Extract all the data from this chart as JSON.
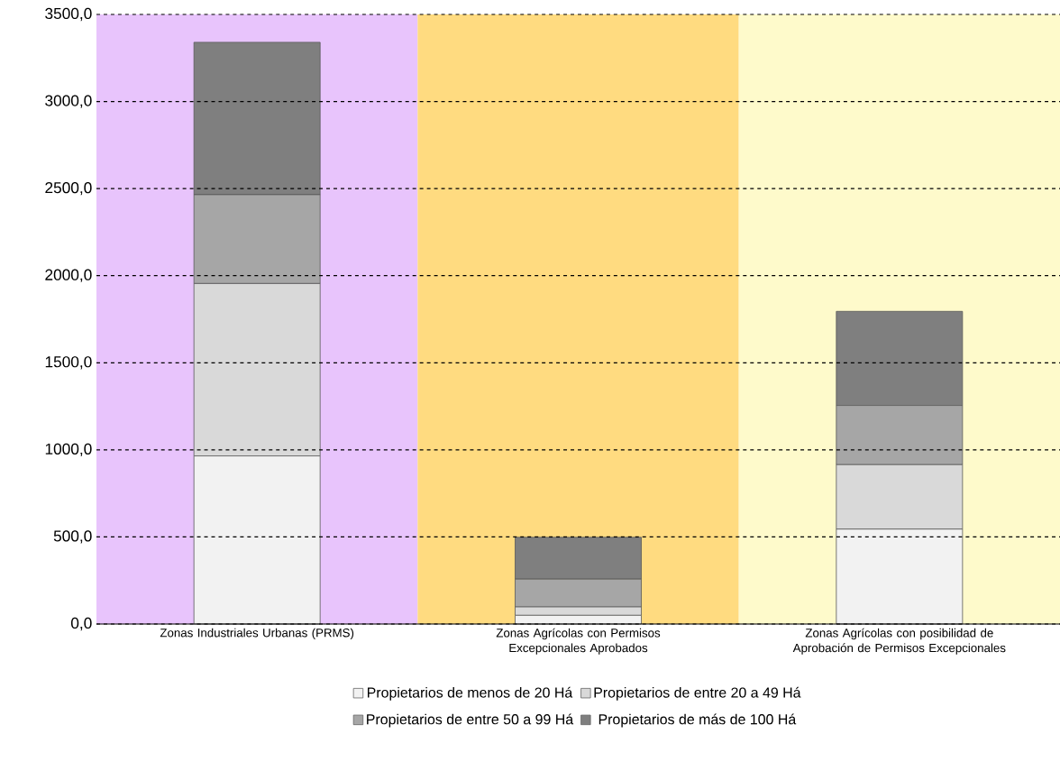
{
  "chart_data": {
    "type": "bar",
    "stacked": true,
    "categories": [
      "Zonas Industriales Urbanas (PRMS)",
      "Zonas Agrícolas con Permisos Excepcionales Aprobados",
      "Zonas Agrícolas con posibilidad de Aprobación de Permisos Excepcionales"
    ],
    "series": [
      {
        "name": "Propietarios de menos de 20 Há",
        "color": "#f2f2f2",
        "values": [
          965,
          50,
          545
        ]
      },
      {
        "name": "Propietarios de entre 20 a 49 Há",
        "color": "#d9d9d9",
        "values": [
          990,
          48,
          370
        ]
      },
      {
        "name": "Propietarios de entre 50 a 99 Há",
        "color": "#a6a6a6",
        "values": [
          510,
          160,
          340
        ]
      },
      {
        "name": "Propietarios de más de 100 Há",
        "color": "#7f7f7f",
        "values": [
          875,
          240,
          540
        ]
      }
    ],
    "ylim": [
      0,
      3500
    ],
    "yticks": [
      {
        "value": 0,
        "label": "0,0"
      },
      {
        "value": 500,
        "label": "500,0"
      },
      {
        "value": 1000,
        "label": "1000,0"
      },
      {
        "value": 1500,
        "label": "1500,0"
      },
      {
        "value": 2000,
        "label": "2000,0"
      },
      {
        "value": 2500,
        "label": "2500,0"
      },
      {
        "value": 3000,
        "label": "3000,0"
      },
      {
        "value": 3500,
        "label": "3500,0"
      }
    ],
    "bands": [
      {
        "axis": "x",
        "from": "Zonas Industriales Urbanas (PRMS)",
        "to": "Zonas Industriales Urbanas (PRMS)",
        "color": "#e8c4fc"
      },
      {
        "axis": "x",
        "from": "Zonas Agrícolas con Permisos Excepcionales Aprobados",
        "to": "Zonas Agrícolas con Permisos Excepcionales Aprobados",
        "color": "#ffdb80"
      },
      {
        "axis": "x",
        "from": "Zonas Agrícolas con posibilidad de Aprobación de Permisos Excepcionales",
        "to": "Zonas Agrícolas con posibilidad de Aprobación de Permisos Excepcionales",
        "color": "#fefacb"
      }
    ],
    "grid": "y",
    "legend": "bottom"
  }
}
